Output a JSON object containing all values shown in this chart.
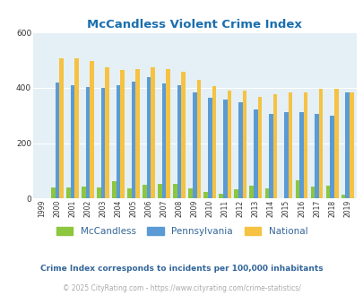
{
  "title": "McCandless Violent Crime Index",
  "title_color": "#1a6faf",
  "subtitle": "Crime Index corresponds to incidents per 100,000 inhabitants",
  "subtitle_color": "#336699",
  "copyright": "© 2025 CityRating.com - https://www.cityrating.com/crime-statistics/",
  "copyright_color": "#aaaaaa",
  "years": [
    1999,
    2000,
    2001,
    2002,
    2003,
    2004,
    2005,
    2006,
    2007,
    2008,
    2009,
    2010,
    2011,
    2012,
    2013,
    2014,
    2015,
    2016,
    2017,
    2018,
    2019
  ],
  "mccandless": [
    0,
    40,
    40,
    42,
    38,
    62,
    35,
    48,
    52,
    52,
    36,
    22,
    15,
    32,
    45,
    37,
    0,
    65,
    42,
    47,
    12
  ],
  "pennsylvania": [
    0,
    420,
    408,
    402,
    400,
    410,
    422,
    440,
    415,
    408,
    383,
    365,
    356,
    348,
    322,
    305,
    312,
    312,
    305,
    300,
    383
  ],
  "national": [
    0,
    507,
    506,
    496,
    473,
    463,
    469,
    474,
    467,
    457,
    430,
    405,
    390,
    391,
    368,
    376,
    383,
    383,
    397,
    396,
    383
  ],
  "mccandless_color": "#8dc63f",
  "pennsylvania_color": "#5b9bd5",
  "national_color": "#f5c242",
  "bg_color": "#e4f0f5",
  "ylim": [
    0,
    600
  ],
  "yticks": [
    0,
    200,
    400,
    600
  ],
  "bar_width": 0.27,
  "legend_labels": [
    "McCandless",
    "Pennsylvania",
    "National"
  ],
  "fig_bg": "#ffffff"
}
